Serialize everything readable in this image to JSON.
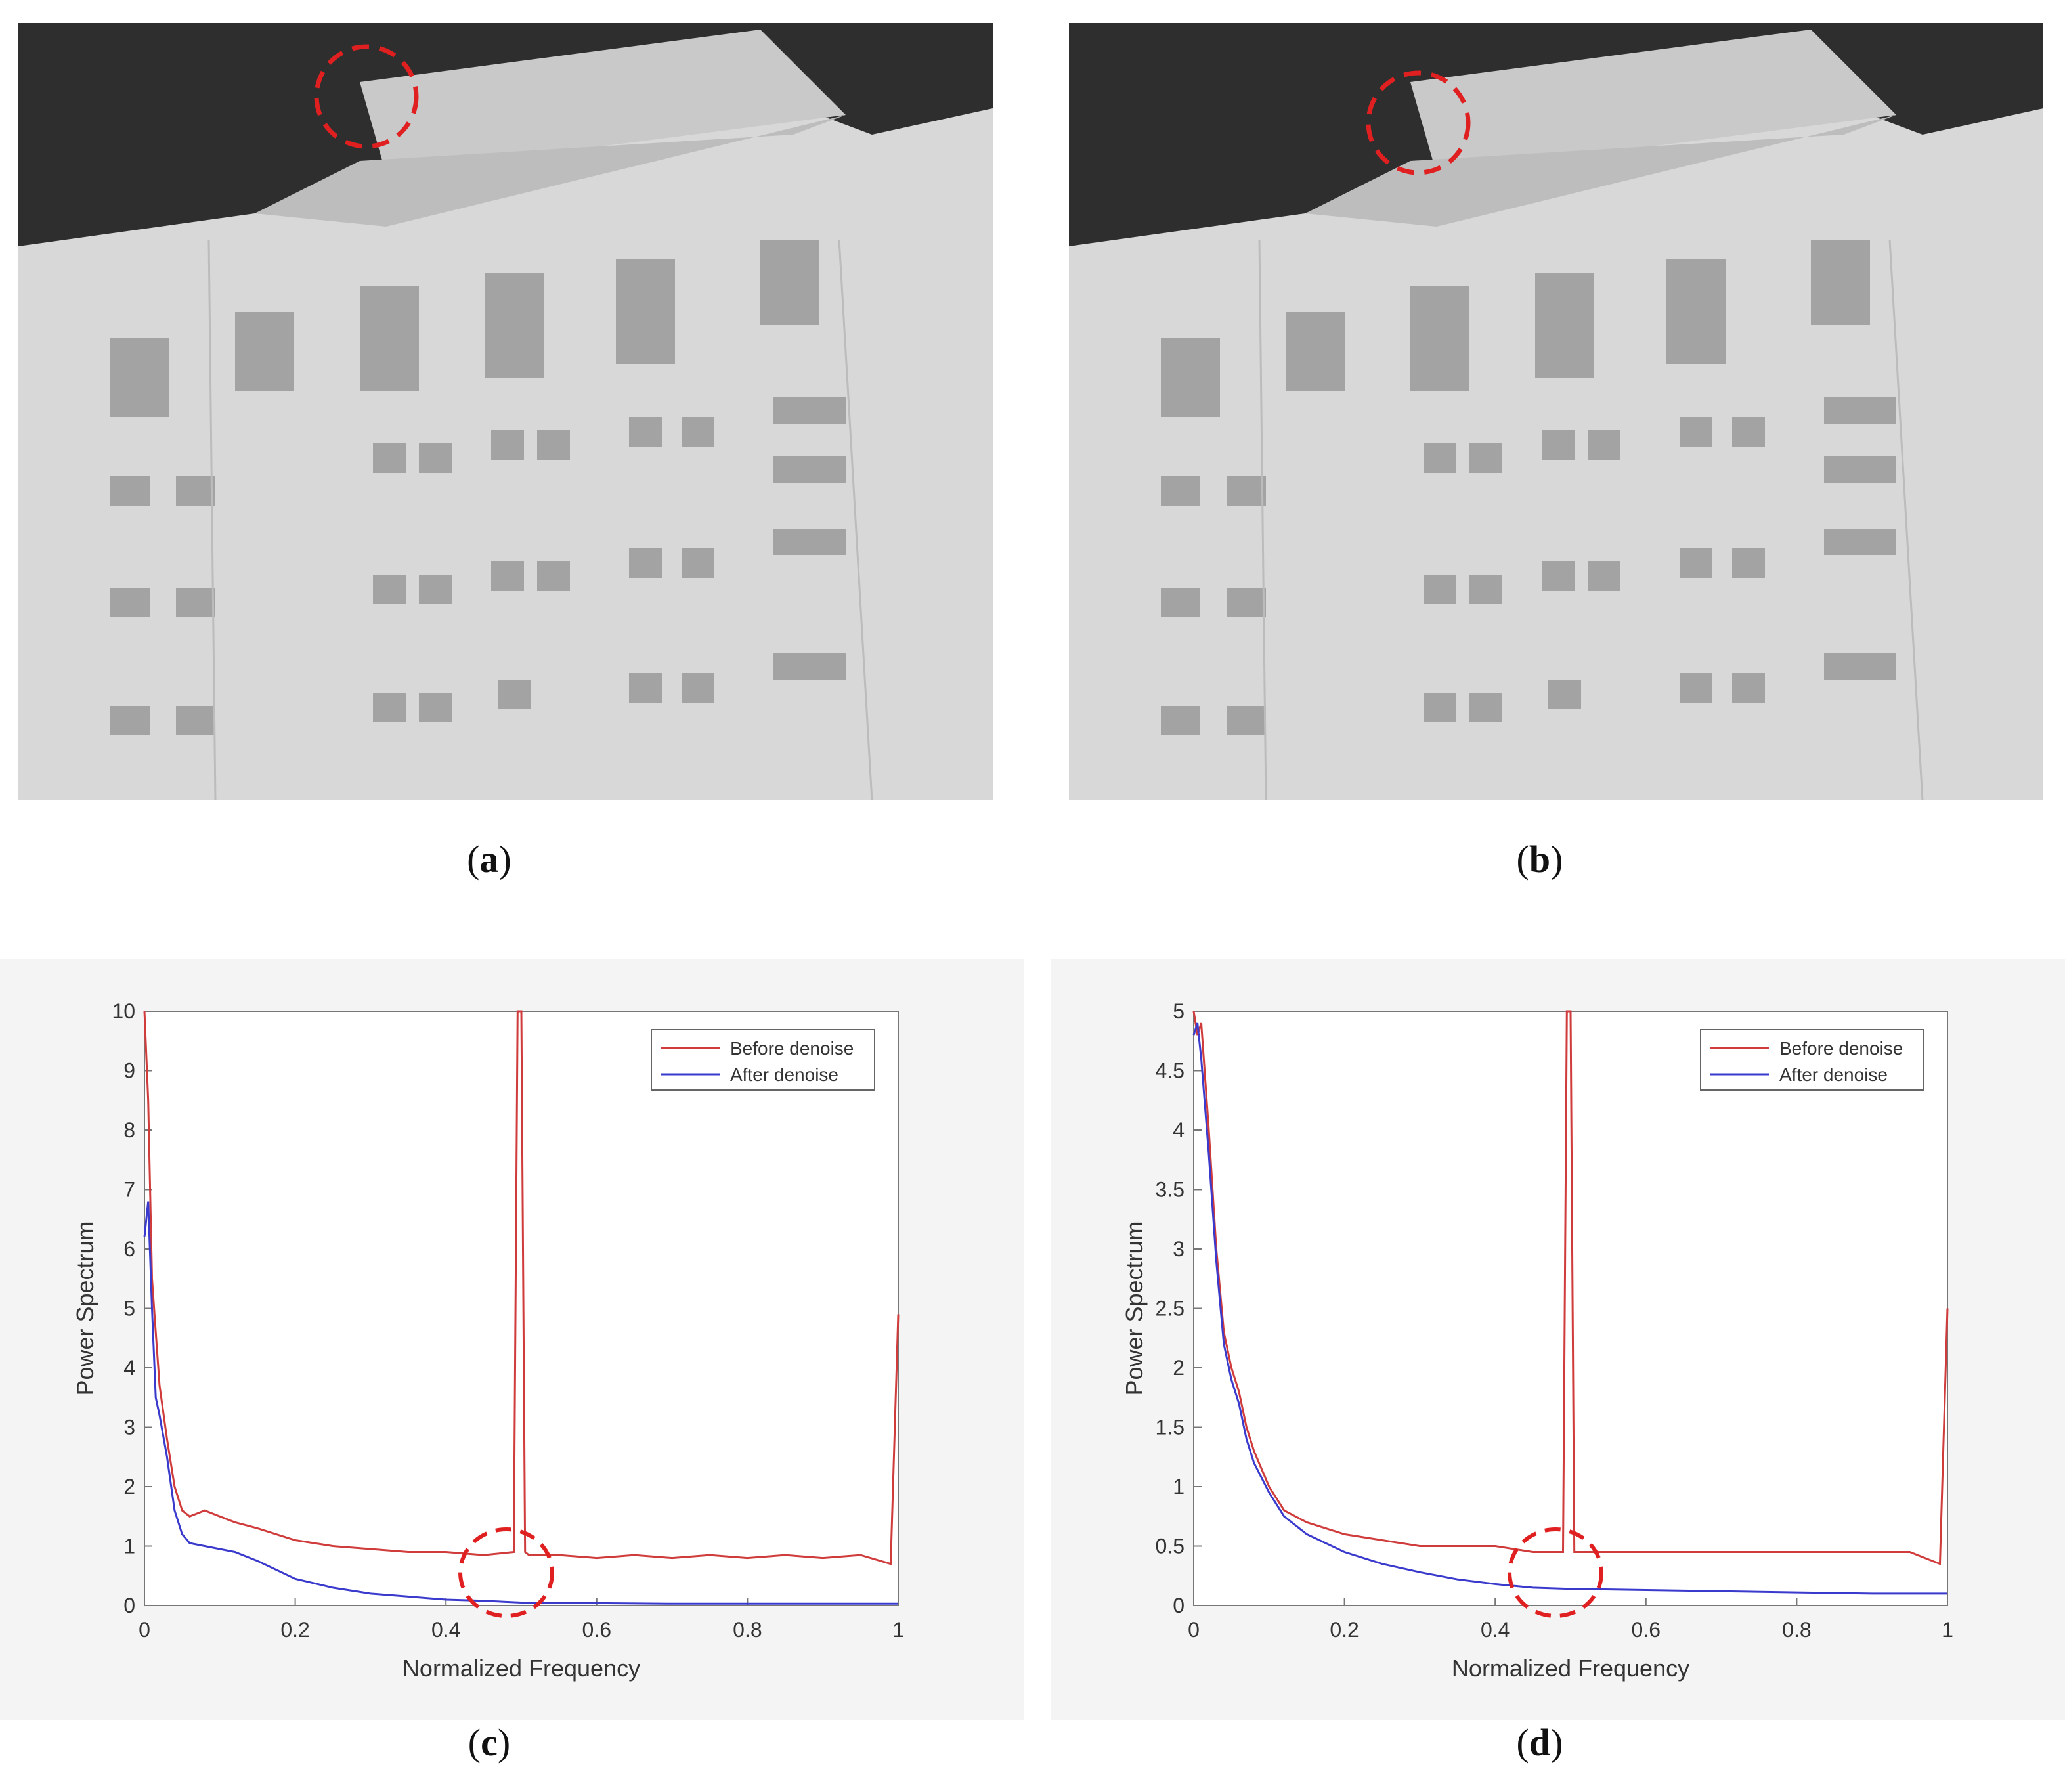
{
  "figure": {
    "captions": {
      "a": "a",
      "b": "b",
      "c": "c",
      "d": "d"
    }
  },
  "colors": {
    "before": "#d03c3c",
    "after": "#3a3acd",
    "highlight": "#e02020",
    "sky": "#2e2e2e",
    "facade": "#d8d8d8"
  },
  "chart_data": [
    {
      "id": "c",
      "type": "line",
      "xlabel": "Normalized Frequency",
      "ylabel": "Power Spectrum",
      "xlim": [
        0,
        1
      ],
      "ylim": [
        0,
        10
      ],
      "xticks": [
        "0",
        "0.2",
        "0.4",
        "0.6",
        "0.8",
        "1"
      ],
      "yticks": [
        "0",
        "1",
        "2",
        "3",
        "4",
        "5",
        "6",
        "7",
        "8",
        "9",
        "10"
      ],
      "legend": {
        "position": "top-right",
        "entries": [
          "Before denoise",
          "After denoise"
        ]
      },
      "annotation": "dashed circle near normalized frequency 0.48",
      "series": [
        {
          "name": "Before denoise",
          "x": [
            0.0,
            0.005,
            0.01,
            0.015,
            0.02,
            0.03,
            0.04,
            0.05,
            0.06,
            0.08,
            0.1,
            0.12,
            0.15,
            0.2,
            0.25,
            0.3,
            0.35,
            0.4,
            0.45,
            0.49,
            0.495,
            0.5,
            0.505,
            0.51,
            0.55,
            0.6,
            0.65,
            0.7,
            0.75,
            0.8,
            0.85,
            0.9,
            0.95,
            0.99,
            1.0
          ],
          "y": [
            10.0,
            8.5,
            5.5,
            4.6,
            3.7,
            2.8,
            2.0,
            1.6,
            1.5,
            1.6,
            1.5,
            1.4,
            1.3,
            1.1,
            1.0,
            0.95,
            0.9,
            0.9,
            0.85,
            0.9,
            10.0,
            10.0,
            0.9,
            0.85,
            0.85,
            0.8,
            0.85,
            0.8,
            0.85,
            0.8,
            0.85,
            0.8,
            0.85,
            0.7,
            4.9
          ]
        },
        {
          "name": "After denoise",
          "x": [
            0.0,
            0.005,
            0.01,
            0.015,
            0.02,
            0.03,
            0.04,
            0.05,
            0.06,
            0.08,
            0.1,
            0.12,
            0.15,
            0.2,
            0.25,
            0.3,
            0.35,
            0.4,
            0.45,
            0.5,
            0.6,
            0.7,
            0.8,
            0.9,
            1.0
          ],
          "y": [
            6.2,
            6.8,
            5.0,
            3.5,
            3.2,
            2.5,
            1.6,
            1.2,
            1.05,
            1.0,
            0.95,
            0.9,
            0.75,
            0.45,
            0.3,
            0.2,
            0.15,
            0.1,
            0.08,
            0.05,
            0.04,
            0.03,
            0.03,
            0.03,
            0.03
          ]
        }
      ]
    },
    {
      "id": "d",
      "type": "line",
      "xlabel": "Normalized Frequency",
      "ylabel": "Power Spectrum",
      "xlim": [
        0,
        1
      ],
      "ylim": [
        0,
        5
      ],
      "xticks": [
        "0",
        "0.2",
        "0.4",
        "0.6",
        "0.8",
        "1"
      ],
      "yticks": [
        "0",
        "0.5",
        "1",
        "1.5",
        "2",
        "2.5",
        "3",
        "3.5",
        "4",
        "4.5",
        "5"
      ],
      "legend": {
        "position": "top-right",
        "entries": [
          "Before denoise",
          "After denoise"
        ]
      },
      "annotation": "dashed circle near normalized frequency 0.48",
      "series": [
        {
          "name": "Before denoise",
          "x": [
            0.0,
            0.005,
            0.01,
            0.02,
            0.03,
            0.04,
            0.05,
            0.06,
            0.07,
            0.08,
            0.1,
            0.12,
            0.15,
            0.2,
            0.25,
            0.3,
            0.35,
            0.4,
            0.45,
            0.49,
            0.495,
            0.5,
            0.505,
            0.51,
            0.55,
            0.6,
            0.65,
            0.7,
            0.75,
            0.8,
            0.85,
            0.9,
            0.95,
            0.99,
            1.0
          ],
          "y": [
            5.0,
            4.8,
            4.9,
            4.0,
            3.0,
            2.3,
            2.0,
            1.8,
            1.5,
            1.3,
            1.0,
            0.8,
            0.7,
            0.6,
            0.55,
            0.5,
            0.5,
            0.5,
            0.45,
            0.45,
            5.0,
            5.0,
            0.45,
            0.45,
            0.45,
            0.45,
            0.45,
            0.45,
            0.45,
            0.45,
            0.45,
            0.45,
            0.45,
            0.35,
            2.5
          ]
        },
        {
          "name": "After denoise",
          "x": [
            0.0,
            0.005,
            0.01,
            0.02,
            0.03,
            0.04,
            0.05,
            0.06,
            0.07,
            0.08,
            0.1,
            0.12,
            0.15,
            0.2,
            0.25,
            0.3,
            0.35,
            0.4,
            0.45,
            0.5,
            0.6,
            0.7,
            0.8,
            0.9,
            1.0
          ],
          "y": [
            4.8,
            4.9,
            4.6,
            3.8,
            2.9,
            2.2,
            1.9,
            1.7,
            1.4,
            1.2,
            0.95,
            0.75,
            0.6,
            0.45,
            0.35,
            0.28,
            0.22,
            0.18,
            0.15,
            0.14,
            0.13,
            0.12,
            0.11,
            0.1,
            0.1
          ]
        }
      ]
    }
  ]
}
